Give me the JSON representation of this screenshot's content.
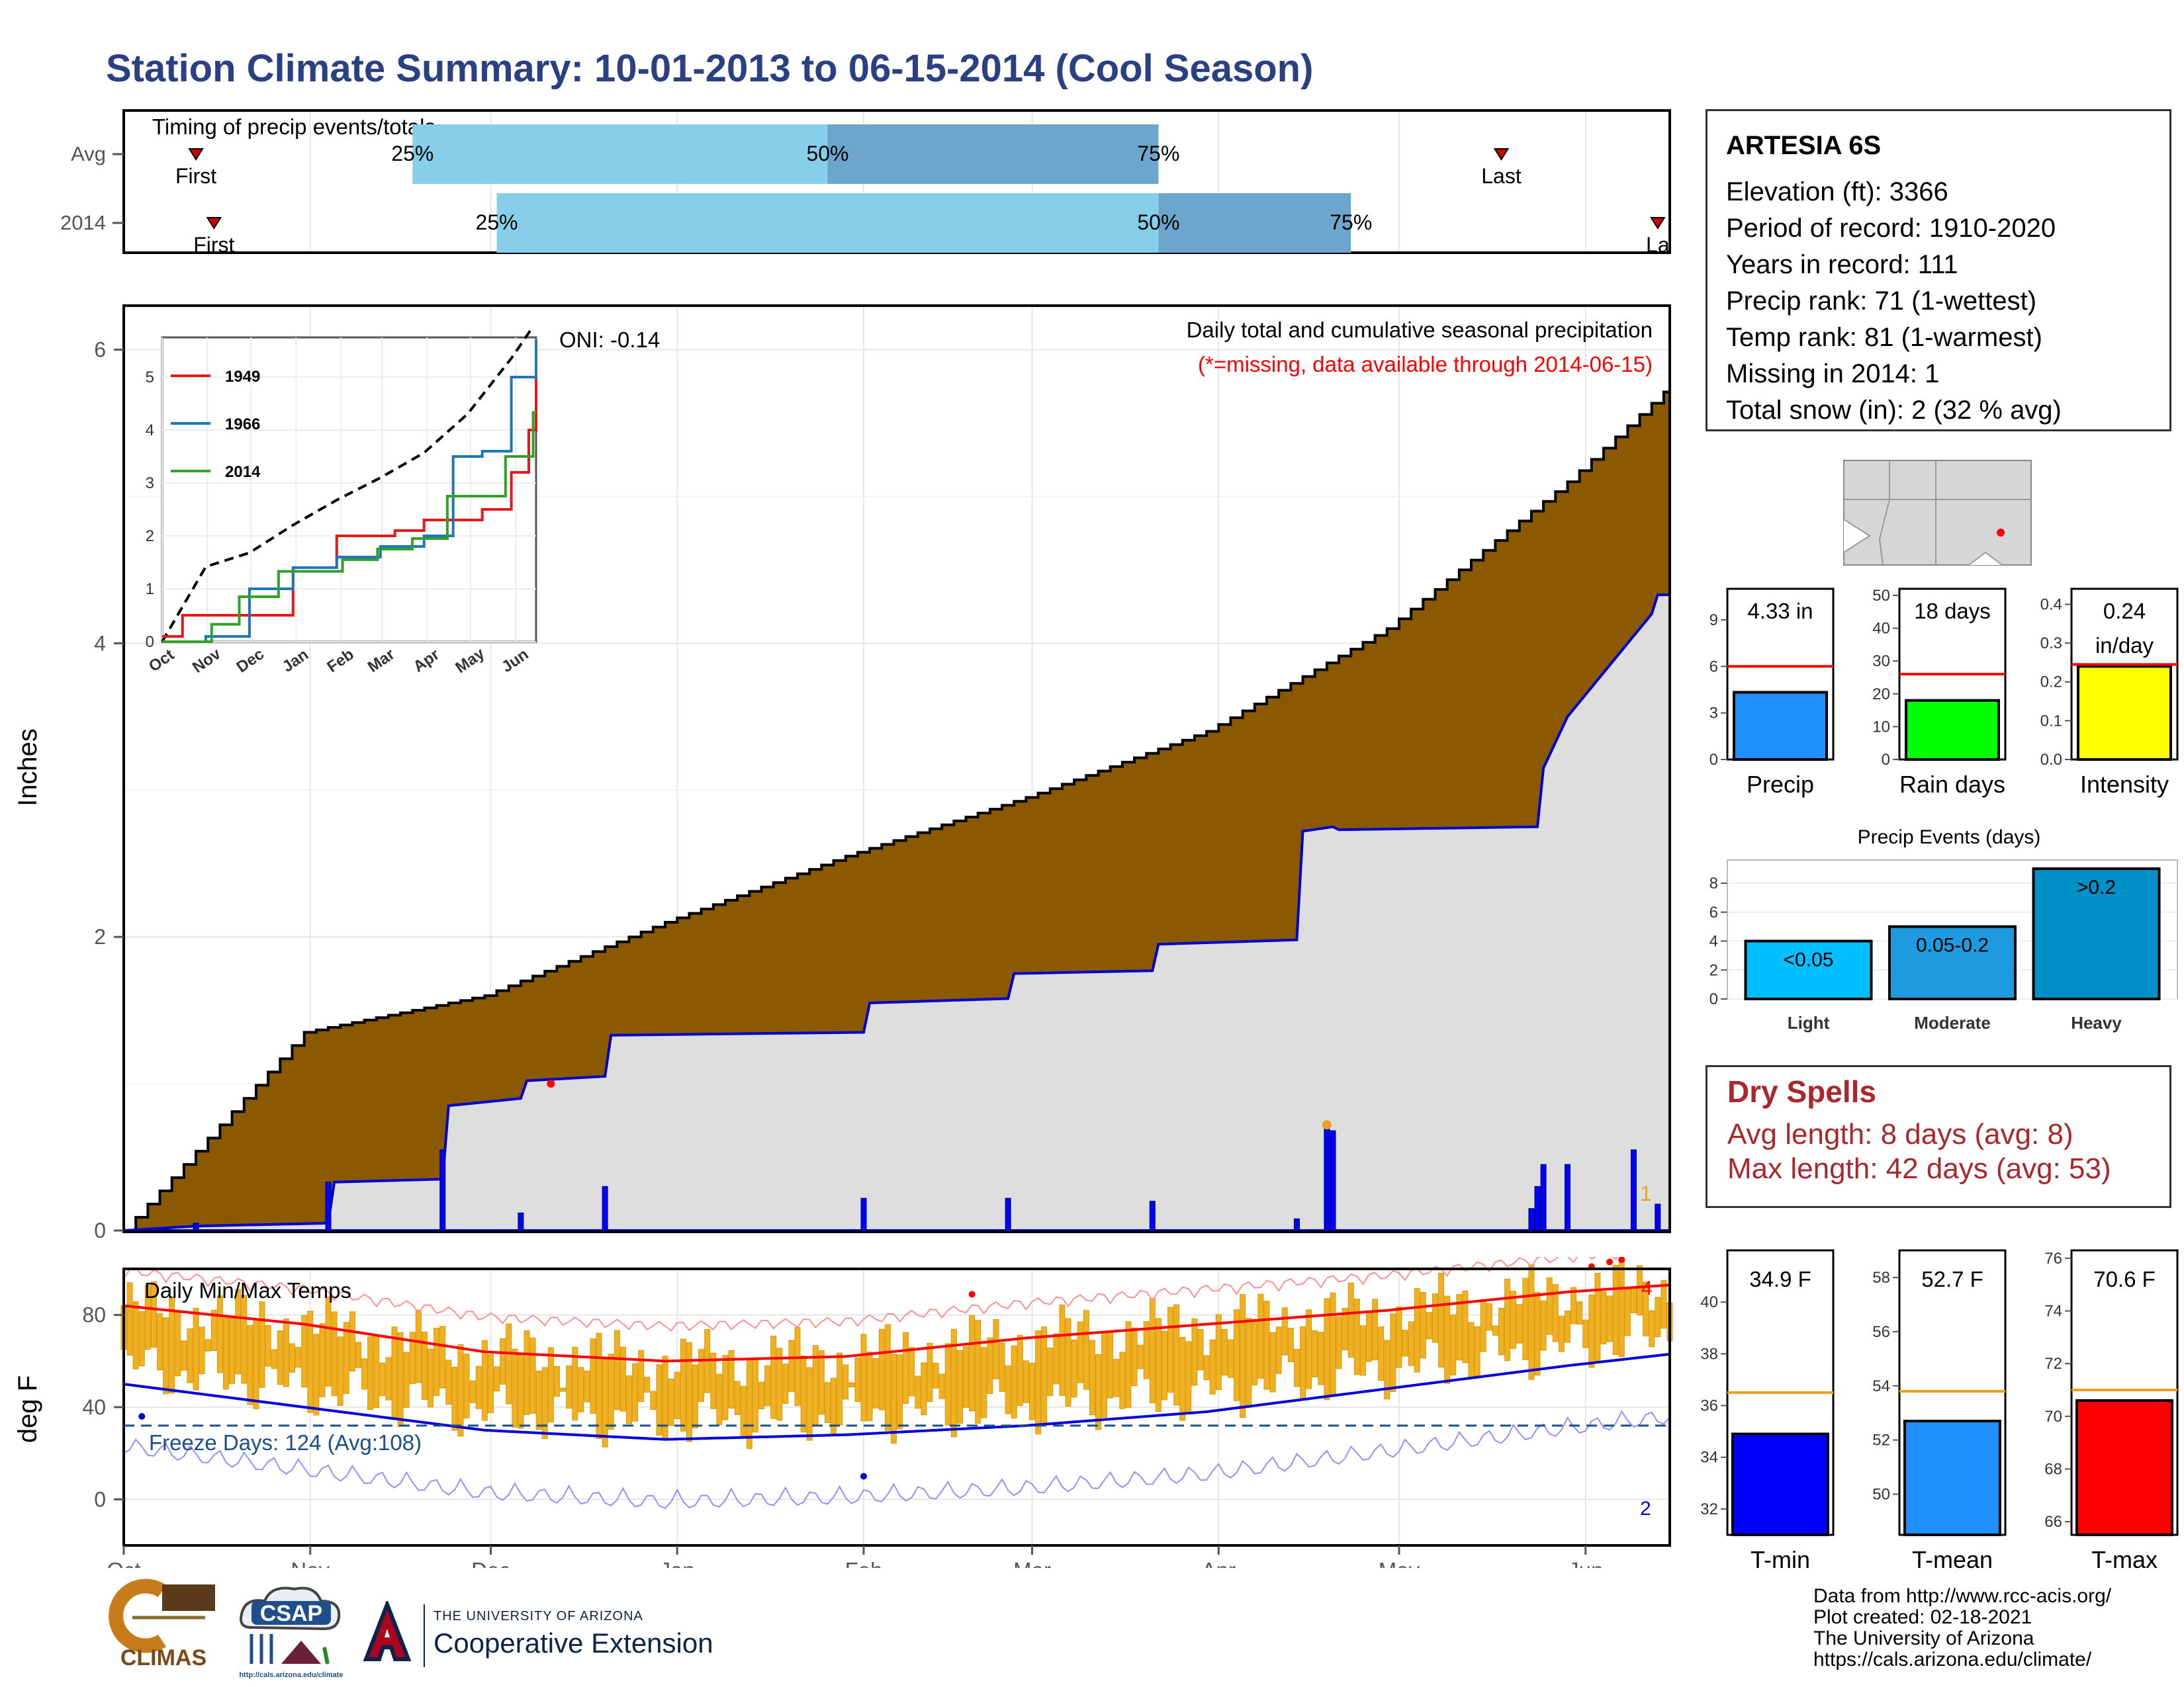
{
  "title": "Station Climate Summary: 10-01-2013 to 06-15-2014 (Cool Season)",
  "timing_panel": {
    "label": "Timing of precip events/totals",
    "rows": [
      {
        "name": "Avg",
        "first_label": "First",
        "last_label": "Last",
        "p25_label": "25%",
        "p50_label": "50%",
        "p75_label": "75%"
      },
      {
        "name": "2014",
        "first_label": "First",
        "last_label": "La",
        "p25_label": "25%",
        "p50_label": "50%",
        "p75_label": "75%"
      }
    ]
  },
  "main_panel": {
    "ylabel": "Inches",
    "caption": "Daily total and cumulative seasonal precipitation",
    "missing_note": "(*=missing, data available through 2014-06-15)",
    "oni": "ONI: -0.14",
    "yticks": [
      "0",
      "2",
      "4",
      "6"
    ],
    "bar_count_label": "1"
  },
  "inset": {
    "yticks": [
      "0",
      "1",
      "2",
      "3",
      "4",
      "5"
    ],
    "xticks": [
      "Oct",
      "Nov",
      "Dec",
      "Jan",
      "Feb",
      "Mar",
      "Apr",
      "May",
      "Jun"
    ],
    "legend": [
      "1949",
      "1966",
      "2014"
    ]
  },
  "temp_panel": {
    "ylabel": "deg F",
    "label": "Daily Min/Max Temps",
    "freeze_label": "Freeze Days: 124 (Avg:108)",
    "yticks": [
      "0",
      "40",
      "80"
    ],
    "max_count_label": "4",
    "min_count_label": "2"
  },
  "months": [
    "Oct",
    "Nov",
    "Dec",
    "Jan",
    "Feb",
    "Mar",
    "Apr",
    "May",
    "Jun"
  ],
  "station": {
    "name": "ARTESIA 6S",
    "lines": [
      "Elevation (ft): 3366",
      "Period of record: 1910-2020",
      "Years in record: 111",
      "Precip rank: 71 (1-wettest)",
      "Temp rank: 81 (1-warmest)",
      "Missing in 2014: 1",
      "Total snow (in): 2 (32 % avg)"
    ]
  },
  "mini_bars": [
    {
      "label": "Precip",
      "value_text": "4.33 in",
      "value": 4.33,
      "avg": 6.0,
      "ymax": 11,
      "yticks": [
        "0",
        "3",
        "6",
        "9"
      ],
      "color": "#1e90ff"
    },
    {
      "label": "Rain days",
      "value_text": "18 days",
      "value": 18,
      "avg": 26,
      "ymax": 52,
      "yticks": [
        "0",
        "10",
        "20",
        "30",
        "40",
        "50"
      ],
      "color": "#00ff00"
    },
    {
      "label": "Intensity",
      "value_text": "0.24",
      "value_text2": "in/day",
      "value": 0.24,
      "avg": 0.245,
      "ymax": 0.44,
      "yticks": [
        "0.0",
        "0.1",
        "0.2",
        "0.3",
        "0.4"
      ],
      "color": "#ffff00"
    }
  ],
  "precip_events": {
    "title": "Precip Events (days)",
    "yticks": [
      "0",
      "2",
      "4",
      "6",
      "8"
    ],
    "bars": [
      {
        "label": "Light",
        "range": "<0.05",
        "value": 4,
        "color": "#00bfff"
      },
      {
        "label": "Moderate",
        "range": "0.05-0.2",
        "value": 5,
        "color": "#1e9ae0"
      },
      {
        "label": "Heavy",
        "range": ">0.2",
        "value": 9,
        "color": "#0090c8"
      }
    ]
  },
  "dry_spells": {
    "title": "Dry Spells",
    "lines": [
      "Avg length: 8 days (avg: 8)",
      "Max length: 42 days (avg: 53)"
    ]
  },
  "temp_bars": [
    {
      "label": "T-min",
      "value_text": "34.9 F",
      "value": 34.9,
      "avg": 36.5,
      "ymin": 31,
      "ymax": 42,
      "yticks": [
        "32",
        "34",
        "36",
        "38",
        "40"
      ],
      "color": "#0000ff"
    },
    {
      "label": "T-mean",
      "value_text": "52.7 F",
      "value": 52.7,
      "avg": 53.8,
      "ymin": 48.5,
      "ymax": 59,
      "yticks": [
        "50",
        "52",
        "54",
        "56",
        "58"
      ],
      "color": "#1e90ff"
    },
    {
      "label": "T-max",
      "value_text": "70.6 F",
      "value": 70.6,
      "avg": 71.0,
      "ymin": 65.5,
      "ymax": 76.3,
      "yticks": [
        "66",
        "68",
        "70",
        "72",
        "74",
        "76"
      ],
      "color": "#ff0000"
    }
  ],
  "credits": [
    "Data from http://www.rcc-acis.org/",
    "Plot created: 02-18-2021",
    "The University of Arizona",
    "https://cals.arizona.edu/climate/"
  ],
  "logos": {
    "climas": "CLIMAS",
    "csap": "CSAP",
    "csap_url": "http://cals.arizona.edu/climate",
    "ua_small": "THE UNIVERSITY OF ARIZONA",
    "ua_big": "Cooperative Extension"
  },
  "chart_data": {
    "type": "area",
    "series": [
      {
        "name": "cumulative average",
        "x": [
          0,
          30,
          60,
          90,
          120,
          150,
          180,
          210,
          240,
          257
        ],
        "values": [
          0,
          1.35,
          1.6,
          2.1,
          2.55,
          2.95,
          3.4,
          4.1,
          5.1,
          5.75
        ]
      },
      {
        "name": "2014",
        "x": [
          0,
          12,
          34,
          35,
          53,
          54,
          66,
          67,
          80,
          81,
          123,
          124,
          147,
          148,
          171,
          172,
          195,
          196,
          201,
          202,
          235,
          236,
          240,
          241,
          254,
          255,
          257
        ],
        "values": [
          0,
          0.03,
          0.05,
          0.33,
          0.35,
          0.85,
          0.9,
          1.02,
          1.05,
          1.33,
          1.35,
          1.55,
          1.58,
          1.75,
          1.77,
          1.95,
          1.98,
          2.72,
          2.75,
          2.73,
          2.75,
          3.15,
          3.5,
          3.55,
          4.2,
          4.33,
          4.33
        ]
      }
    ],
    "daily_precip": {
      "days": [
        12,
        34,
        53,
        66,
        80,
        123,
        147,
        171,
        195,
        200,
        201,
        234,
        235,
        236,
        240,
        251,
        255
      ],
      "values": [
        0.05,
        0.33,
        0.55,
        0.12,
        0.3,
        0.22,
        0.22,
        0.2,
        0.08,
        0.72,
        0.68,
        0.15,
        0.3,
        0.45,
        0.45,
        0.55,
        0.18
      ]
    },
    "ylabel": "Inches",
    "ylim": [
      0,
      6.3
    ],
    "inset": {
      "series": [
        {
          "name": "1949",
          "x": [
            0,
            14,
            60,
            90,
            120,
            160,
            180,
            220,
            240,
            252,
            257
          ],
          "values": [
            0.1,
            0.5,
            0.5,
            1.4,
            2.0,
            2.1,
            2.3,
            2.5,
            3.2,
            4.0,
            5.5
          ]
        },
        {
          "name": "1966",
          "x": [
            0,
            30,
            60,
            90,
            120,
            150,
            180,
            200,
            220,
            240,
            257
          ],
          "values": [
            0,
            0.1,
            1.0,
            1.4,
            1.6,
            1.8,
            2.0,
            3.5,
            3.6,
            5.0,
            5.7
          ]
        },
        {
          "name": "2014",
          "x": [
            0,
            34,
            53,
            80,
            124,
            148,
            172,
            196,
            236,
            241,
            255,
            257
          ],
          "values": [
            0,
            0.33,
            0.85,
            1.33,
            1.55,
            1.75,
            1.95,
            2.75,
            3.5,
            3.5,
            4.33,
            4.33
          ]
        }
      ],
      "ylim": [
        0,
        5.5
      ]
    },
    "temps": {
      "ylim": [
        -20,
        100
      ],
      "avg_max": {
        "x": [
          0,
          30,
          60,
          90,
          120,
          150,
          180,
          210,
          240,
          257
        ],
        "values": [
          84,
          76,
          64,
          60,
          62,
          70,
          76,
          82,
          90,
          93
        ]
      },
      "avg_min": {
        "x": [
          0,
          30,
          60,
          90,
          120,
          150,
          180,
          210,
          240,
          257
        ],
        "values": [
          50,
          40,
          30,
          26,
          28,
          32,
          38,
          48,
          58,
          63
        ]
      },
      "freeze_line": 32
    }
  }
}
